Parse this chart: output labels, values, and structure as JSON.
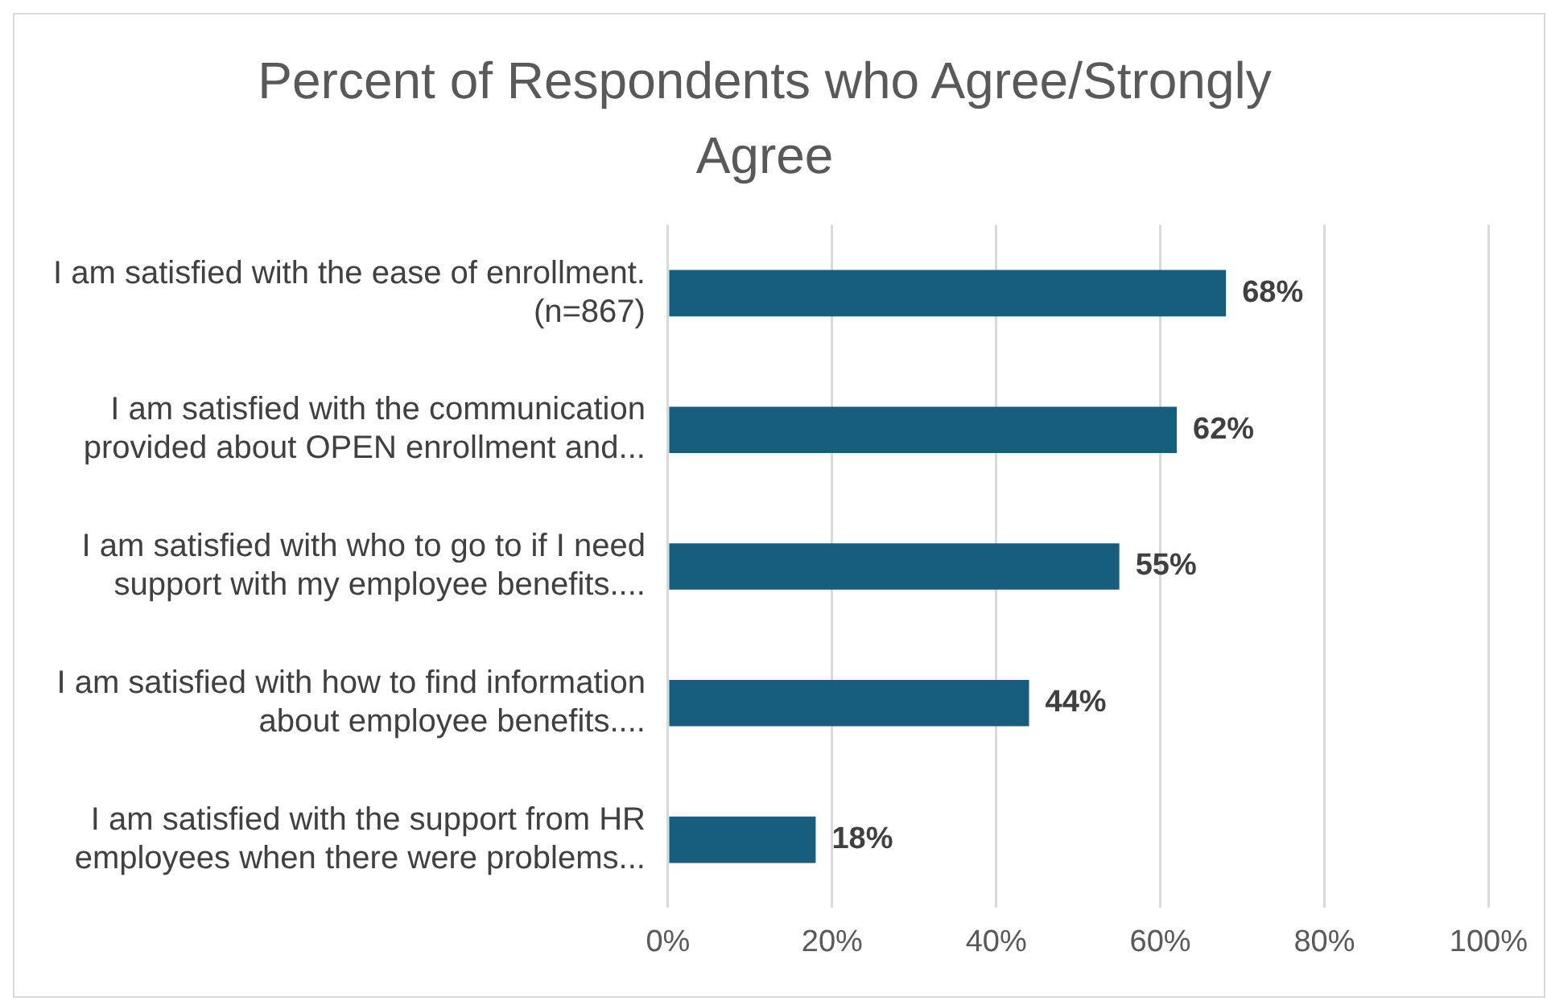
{
  "chart_data": {
    "type": "bar",
    "orientation": "horizontal",
    "title": "Percent of Respondents who Agree/Strongly Agree",
    "categories": [
      "I am satisfied with the ease of enrollment. (n=867)",
      "I am satisfied with the communication provided about OPEN enrollment and...",
      "I am satisfied with who to go to if I need support with my employee benefits....",
      "I am satisfied with how to find information about employee benefits....",
      "I am satisfied with the support from HR employees when there were problems..."
    ],
    "values": [
      68,
      62,
      55,
      44,
      18
    ],
    "value_labels": [
      "68%",
      "62%",
      "55%",
      "44%",
      "18%"
    ],
    "color": "#175e7e",
    "xlim": [
      0,
      100
    ],
    "xticks": [
      {
        "value": 0,
        "label": "0%"
      },
      {
        "value": 20,
        "label": "20%"
      },
      {
        "value": 40,
        "label": "40%"
      },
      {
        "value": 60,
        "label": "60%"
      },
      {
        "value": 80,
        "label": "80%"
      },
      {
        "value": 100,
        "label": "100%"
      }
    ],
    "grid": "x",
    "legend": false
  }
}
